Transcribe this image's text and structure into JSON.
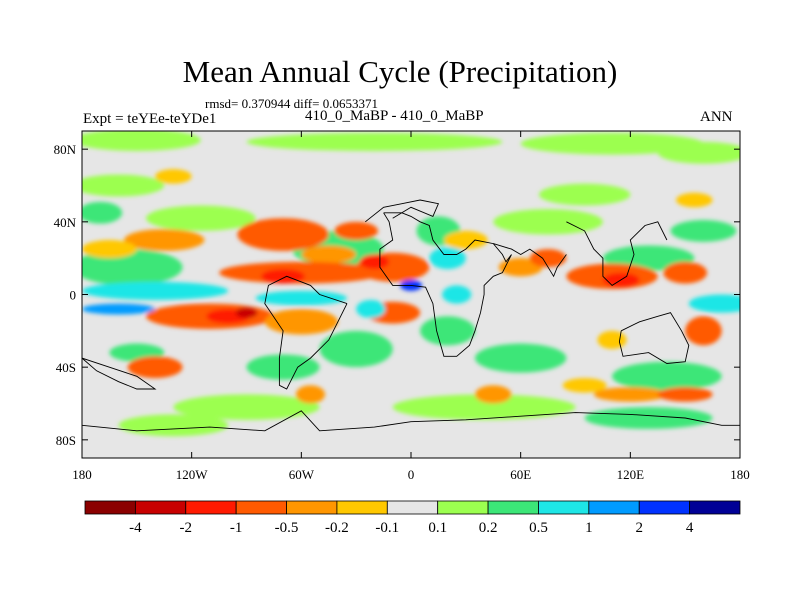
{
  "chart_data": {
    "type": "heatmap",
    "title": "Mean Annual Cycle (Precipitation)",
    "stats_line": "rmsd= 0.370944 diff= 0.0653371",
    "left_label": "Expt = teYEe-teYDe1",
    "center_label": "410_0_MaBP - 410_0_MaBP",
    "right_label": "ANN",
    "x_axis": {
      "range": [
        -180,
        180
      ],
      "ticks": [
        -180,
        -120,
        -60,
        0,
        60,
        120,
        180
      ],
      "tick_labels": [
        "180",
        "120W",
        "60W",
        "0",
        "60E",
        "120E",
        "180"
      ]
    },
    "y_axis": {
      "range": [
        -90,
        90
      ],
      "ticks": [
        80,
        40,
        0,
        -40,
        -80
      ],
      "tick_labels": [
        "80N",
        "40N",
        "0",
        "40S",
        "80S"
      ]
    },
    "colorbar": {
      "labels": [
        "-4",
        "-2",
        "-1",
        "-0.5",
        "-0.2",
        "-0.1",
        "0.1",
        "0.2",
        "0.5",
        "1",
        "2",
        "4"
      ],
      "colors": [
        "#8b0000",
        "#c80000",
        "#ff1a00",
        "#ff5a00",
        "#ff9600",
        "#ffc800",
        "#e6e6e6",
        "#9cff50",
        "#3ce678",
        "#1ee6e6",
        "#009bff",
        "#0032ff",
        "#000096"
      ]
    },
    "field_blobs": [
      {
        "lon": -150,
        "lat": 85,
        "rx": 35,
        "ry": 6,
        "c": 7
      },
      {
        "lon": -20,
        "lat": 84,
        "rx": 70,
        "ry": 5,
        "c": 7
      },
      {
        "lon": 110,
        "lat": 83,
        "rx": 50,
        "ry": 6,
        "c": 7
      },
      {
        "lon": 160,
        "lat": 78,
        "rx": 25,
        "ry": 6,
        "c": 7
      },
      {
        "lon": -160,
        "lat": 60,
        "rx": 25,
        "ry": 6,
        "c": 7
      },
      {
        "lon": 95,
        "lat": 55,
        "rx": 25,
        "ry": 6,
        "c": 7
      },
      {
        "lon": -115,
        "lat": 42,
        "rx": 30,
        "ry": 7,
        "c": 7
      },
      {
        "lon": 75,
        "lat": 40,
        "rx": 30,
        "ry": 7,
        "c": 7
      },
      {
        "lon": -155,
        "lat": 15,
        "rx": 30,
        "ry": 10,
        "c": 8
      },
      {
        "lon": -40,
        "lat": 25,
        "rx": 25,
        "ry": 10,
        "c": 8
      },
      {
        "lon": 15,
        "lat": 35,
        "rx": 12,
        "ry": 8,
        "c": 8
      },
      {
        "lon": 130,
        "lat": 20,
        "rx": 25,
        "ry": 7,
        "c": 8
      },
      {
        "lon": 160,
        "lat": 35,
        "rx": 18,
        "ry": 6,
        "c": 8
      },
      {
        "lon": -170,
        "lat": 45,
        "rx": 12,
        "ry": 6,
        "c": 8
      },
      {
        "lon": -140,
        "lat": 2,
        "rx": 40,
        "ry": 5,
        "c": 9
      },
      {
        "lon": -60,
        "lat": -2,
        "rx": 25,
        "ry": 4,
        "c": 9
      },
      {
        "lon": 170,
        "lat": -5,
        "rx": 18,
        "ry": 5,
        "c": 9
      },
      {
        "lon": 20,
        "lat": 20,
        "rx": 10,
        "ry": 6,
        "c": 9
      },
      {
        "lon": -160,
        "lat": -8,
        "rx": 20,
        "ry": 3,
        "c": 10
      },
      {
        "lon": -150,
        "lat": -32,
        "rx": 15,
        "ry": 5,
        "c": 8
      },
      {
        "lon": -70,
        "lat": -40,
        "rx": 20,
        "ry": 7,
        "c": 8
      },
      {
        "lon": 20,
        "lat": -20,
        "rx": 15,
        "ry": 8,
        "c": 8
      },
      {
        "lon": 60,
        "lat": -35,
        "rx": 25,
        "ry": 8,
        "c": 8
      },
      {
        "lon": 140,
        "lat": -45,
        "rx": 30,
        "ry": 8,
        "c": 8
      },
      {
        "lon": -30,
        "lat": -30,
        "rx": 20,
        "ry": 10,
        "c": 8
      },
      {
        "lon": -90,
        "lat": -62,
        "rx": 40,
        "ry": 7,
        "c": 7
      },
      {
        "lon": 40,
        "lat": -62,
        "rx": 50,
        "ry": 7,
        "c": 7
      },
      {
        "lon": 130,
        "lat": -68,
        "rx": 35,
        "ry": 6,
        "c": 8
      },
      {
        "lon": -130,
        "lat": -72,
        "rx": 30,
        "ry": 6,
        "c": 7
      },
      {
        "lon": -70,
        "lat": 33,
        "rx": 25,
        "ry": 9,
        "c": 3
      },
      {
        "lon": -45,
        "lat": 22,
        "rx": 15,
        "ry": 5,
        "c": 4
      },
      {
        "lon": -30,
        "lat": 35,
        "rx": 12,
        "ry": 5,
        "c": 3
      },
      {
        "lon": -135,
        "lat": 30,
        "rx": 22,
        "ry": 6,
        "c": 4
      },
      {
        "lon": -60,
        "lat": 12,
        "rx": 45,
        "ry": 6,
        "c": 3
      },
      {
        "lon": -10,
        "lat": 15,
        "rx": 20,
        "ry": 8,
        "c": 3
      },
      {
        "lon": 110,
        "lat": 10,
        "rx": 25,
        "ry": 7,
        "c": 3
      },
      {
        "lon": 150,
        "lat": 12,
        "rx": 12,
        "ry": 6,
        "c": 3
      },
      {
        "lon": 60,
        "lat": 15,
        "rx": 12,
        "ry": 5,
        "c": 4
      },
      {
        "lon": 75,
        "lat": 20,
        "rx": 10,
        "ry": 5,
        "c": 3
      },
      {
        "lon": -110,
        "lat": -12,
        "rx": 35,
        "ry": 7,
        "c": 3
      },
      {
        "lon": -60,
        "lat": -15,
        "rx": 20,
        "ry": 7,
        "c": 4
      },
      {
        "lon": -10,
        "lat": -10,
        "rx": 15,
        "ry": 6,
        "c": 3
      },
      {
        "lon": -140,
        "lat": -40,
        "rx": 15,
        "ry": 6,
        "c": 3
      },
      {
        "lon": 45,
        "lat": -55,
        "rx": 10,
        "ry": 5,
        "c": 4
      },
      {
        "lon": -55,
        "lat": -55,
        "rx": 8,
        "ry": 5,
        "c": 4
      },
      {
        "lon": 120,
        "lat": -55,
        "rx": 20,
        "ry": 4,
        "c": 4
      },
      {
        "lon": 150,
        "lat": -55,
        "rx": 15,
        "ry": 4,
        "c": 3
      },
      {
        "lon": 160,
        "lat": -20,
        "rx": 10,
        "ry": 8,
        "c": 3
      },
      {
        "lon": -165,
        "lat": 25,
        "rx": 15,
        "ry": 5,
        "c": 5
      },
      {
        "lon": 30,
        "lat": 30,
        "rx": 12,
        "ry": 5,
        "c": 5
      },
      {
        "lon": 110,
        "lat": -25,
        "rx": 8,
        "ry": 5,
        "c": 5
      },
      {
        "lon": 95,
        "lat": -50,
        "rx": 12,
        "ry": 4,
        "c": 5
      },
      {
        "lon": -130,
        "lat": 65,
        "rx": 10,
        "ry": 4,
        "c": 5
      },
      {
        "lon": 155,
        "lat": 52,
        "rx": 10,
        "ry": 4,
        "c": 5
      },
      {
        "lon": -70,
        "lat": 10,
        "rx": 12,
        "ry": 4,
        "c": 2
      },
      {
        "lon": -20,
        "lat": 18,
        "rx": 8,
        "ry": 4,
        "c": 2
      },
      {
        "lon": 115,
        "lat": 8,
        "rx": 10,
        "ry": 4,
        "c": 2
      },
      {
        "lon": -100,
        "lat": -12,
        "rx": 12,
        "ry": 4,
        "c": 2
      },
      {
        "lon": -90,
        "lat": -10,
        "rx": 6,
        "ry": 3,
        "c": 1
      },
      {
        "lon": -22,
        "lat": -8,
        "rx": 8,
        "ry": 5,
        "c": 9
      },
      {
        "lon": 25,
        "lat": 0,
        "rx": 8,
        "ry": 5,
        "c": 9
      },
      {
        "lon": 0,
        "lat": 5,
        "rx": 6,
        "ry": 3,
        "c": 11
      }
    ],
    "coastlines": [
      [
        [
          -15,
          45
        ],
        [
          -5,
          45
        ],
        [
          0,
          43
        ],
        [
          5,
          40
        ],
        [
          10,
          38
        ],
        [
          12,
          30
        ],
        [
          18,
          22
        ],
        [
          25,
          22
        ],
        [
          30,
          25
        ],
        [
          35,
          30
        ],
        [
          45,
          28
        ],
        [
          50,
          22
        ],
        [
          52,
          18
        ],
        [
          55,
          22
        ],
        [
          50,
          12
        ],
        [
          45,
          10
        ],
        [
          40,
          5
        ],
        [
          40,
          0
        ],
        [
          38,
          -10
        ],
        [
          35,
          -20
        ],
        [
          32,
          -28
        ],
        [
          25,
          -34
        ],
        [
          18,
          -34
        ],
        [
          14,
          -20
        ],
        [
          12,
          -5
        ],
        [
          8,
          4
        ],
        [
          0,
          5
        ],
        [
          -10,
          5
        ],
        [
          -17,
          15
        ],
        [
          -17,
          25
        ],
        [
          -10,
          30
        ],
        [
          -12,
          40
        ],
        [
          -15,
          45
        ]
      ],
      [
        [
          -35,
          -5
        ],
        [
          -40,
          -15
        ],
        [
          -45,
          -25
        ],
        [
          -55,
          -35
        ],
        [
          -62,
          -40
        ],
        [
          -68,
          -52
        ],
        [
          -72,
          -50
        ],
        [
          -72,
          -35
        ],
        [
          -70,
          -20
        ],
        [
          -80,
          -5
        ],
        [
          -78,
          5
        ],
        [
          -68,
          10
        ],
        [
          -55,
          5
        ],
        [
          -50,
          0
        ],
        [
          -35,
          -5
        ]
      ],
      [
        [
          115,
          -20
        ],
        [
          125,
          -15
        ],
        [
          135,
          -12
        ],
        [
          142,
          -10
        ],
        [
          148,
          -20
        ],
        [
          152,
          -28
        ],
        [
          150,
          -37
        ],
        [
          140,
          -38
        ],
        [
          130,
          -32
        ],
        [
          116,
          -34
        ],
        [
          114,
          -26
        ],
        [
          115,
          -20
        ]
      ],
      [
        [
          -180,
          -72
        ],
        [
          -150,
          -75
        ],
        [
          -110,
          -73
        ],
        [
          -80,
          -75
        ],
        [
          -60,
          -64
        ],
        [
          -50,
          -75
        ],
        [
          -20,
          -73
        ],
        [
          0,
          -70
        ],
        [
          30,
          -69
        ],
        [
          60,
          -67
        ],
        [
          90,
          -65
        ],
        [
          120,
          -66
        ],
        [
          150,
          -68
        ],
        [
          170,
          -72
        ],
        [
          180,
          -72
        ]
      ],
      [
        [
          85,
          40
        ],
        [
          95,
          35
        ],
        [
          100,
          25
        ],
        [
          105,
          20
        ],
        [
          105,
          10
        ],
        [
          110,
          5
        ],
        [
          118,
          10
        ],
        [
          122,
          22
        ],
        [
          120,
          30
        ],
        [
          128,
          38
        ],
        [
          135,
          40
        ],
        [
          140,
          30
        ]
      ],
      [
        [
          -180,
          -35
        ],
        [
          -172,
          -42
        ],
        [
          -160,
          -48
        ],
        [
          -150,
          -52
        ],
        [
          -140,
          -52
        ],
        [
          -150,
          -45
        ],
        [
          -165,
          -40
        ],
        [
          -180,
          -35
        ]
      ],
      [
        [
          -25,
          40
        ],
        [
          -15,
          48
        ],
        [
          -5,
          50
        ],
        [
          5,
          52
        ],
        [
          15,
          50
        ],
        [
          12,
          43
        ],
        [
          0,
          48
        ],
        [
          -10,
          42
        ]
      ],
      [
        [
          45,
          28
        ],
        [
          55,
          25
        ],
        [
          60,
          22
        ],
        [
          65,
          25
        ],
        [
          72,
          20
        ],
        [
          78,
          10
        ],
        [
          80,
          15
        ],
        [
          85,
          22
        ]
      ]
    ]
  }
}
